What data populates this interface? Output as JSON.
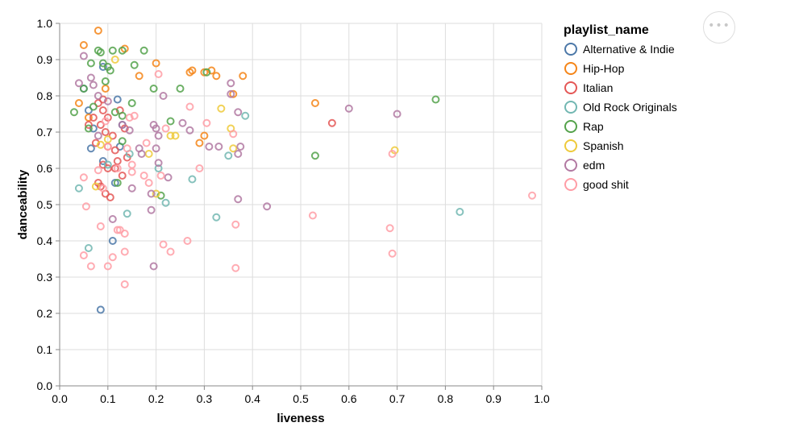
{
  "chart_data": {
    "type": "scatter",
    "xlabel": "liveness",
    "ylabel": "danceability",
    "xlim": [
      0,
      1
    ],
    "ylim": [
      0,
      1
    ],
    "x_ticks": [
      "0.0",
      "0.1",
      "0.2",
      "0.3",
      "0.4",
      "0.5",
      "0.6",
      "0.7",
      "0.8",
      "0.9",
      "1.0"
    ],
    "y_ticks": [
      "0.0",
      "0.1",
      "0.2",
      "0.3",
      "0.4",
      "0.5",
      "0.6",
      "0.7",
      "0.8",
      "0.9",
      "1.0"
    ],
    "grid": true,
    "legend_placement": "right",
    "legend_title": "playlist_name",
    "series": [
      {
        "name": "Alternative & Indie",
        "color": "#4c78a8",
        "points": [
          [
            0.085,
            0.21
          ],
          [
            0.11,
            0.4
          ],
          [
            0.065,
            0.655
          ],
          [
            0.07,
            0.71
          ],
          [
            0.09,
            0.62
          ],
          [
            0.12,
            0.79
          ],
          [
            0.115,
            0.56
          ],
          [
            0.125,
            0.66
          ],
          [
            0.05,
            0.82
          ],
          [
            0.09,
            0.88
          ],
          [
            0.13,
            0.72
          ],
          [
            0.06,
            0.76
          ]
        ]
      },
      {
        "name": "Hip-Hop",
        "color": "#f58518",
        "points": [
          [
            0.05,
            0.94
          ],
          [
            0.08,
            0.98
          ],
          [
            0.135,
            0.93
          ],
          [
            0.2,
            0.89
          ],
          [
            0.165,
            0.855
          ],
          [
            0.27,
            0.865
          ],
          [
            0.275,
            0.87
          ],
          [
            0.3,
            0.865
          ],
          [
            0.315,
            0.87
          ],
          [
            0.325,
            0.855
          ],
          [
            0.36,
            0.805
          ],
          [
            0.38,
            0.855
          ],
          [
            0.53,
            0.78
          ],
          [
            0.04,
            0.78
          ],
          [
            0.29,
            0.67
          ],
          [
            0.3,
            0.69
          ],
          [
            0.06,
            0.74
          ],
          [
            0.095,
            0.82
          ]
        ]
      },
      {
        "name": "Italian",
        "color": "#e45756",
        "points": [
          [
            0.08,
            0.78
          ],
          [
            0.09,
            0.76
          ],
          [
            0.1,
            0.74
          ],
          [
            0.085,
            0.72
          ],
          [
            0.095,
            0.7
          ],
          [
            0.11,
            0.69
          ],
          [
            0.075,
            0.67
          ],
          [
            0.1,
            0.66
          ],
          [
            0.115,
            0.65
          ],
          [
            0.12,
            0.62
          ],
          [
            0.09,
            0.61
          ],
          [
            0.1,
            0.6
          ],
          [
            0.13,
            0.58
          ],
          [
            0.085,
            0.55
          ],
          [
            0.095,
            0.53
          ],
          [
            0.105,
            0.52
          ],
          [
            0.115,
            0.6
          ],
          [
            0.07,
            0.74
          ],
          [
            0.06,
            0.72
          ],
          [
            0.125,
            0.76
          ],
          [
            0.135,
            0.71
          ],
          [
            0.565,
            0.725
          ],
          [
            0.09,
            0.79
          ],
          [
            0.08,
            0.56
          ],
          [
            0.14,
            0.63
          ]
        ]
      },
      {
        "name": "Old Rock Originals",
        "color": "#72b7b2",
        "points": [
          [
            0.04,
            0.545
          ],
          [
            0.06,
            0.38
          ],
          [
            0.14,
            0.475
          ],
          [
            0.205,
            0.6
          ],
          [
            0.22,
            0.505
          ],
          [
            0.275,
            0.57
          ],
          [
            0.325,
            0.465
          ],
          [
            0.35,
            0.635
          ],
          [
            0.385,
            0.745
          ],
          [
            0.83,
            0.48
          ],
          [
            0.145,
            0.64
          ],
          [
            0.1,
            0.61
          ]
        ]
      },
      {
        "name": "Rap",
        "color": "#54a24b",
        "points": [
          [
            0.03,
            0.755
          ],
          [
            0.065,
            0.89
          ],
          [
            0.08,
            0.925
          ],
          [
            0.085,
            0.92
          ],
          [
            0.09,
            0.89
          ],
          [
            0.1,
            0.88
          ],
          [
            0.11,
            0.925
          ],
          [
            0.13,
            0.925
          ],
          [
            0.175,
            0.925
          ],
          [
            0.155,
            0.885
          ],
          [
            0.105,
            0.87
          ],
          [
            0.195,
            0.82
          ],
          [
            0.25,
            0.82
          ],
          [
            0.15,
            0.78
          ],
          [
            0.305,
            0.865
          ],
          [
            0.23,
            0.73
          ],
          [
            0.13,
            0.745
          ],
          [
            0.115,
            0.755
          ],
          [
            0.13,
            0.675
          ],
          [
            0.06,
            0.71
          ],
          [
            0.12,
            0.56
          ],
          [
            0.21,
            0.525
          ],
          [
            0.53,
            0.635
          ],
          [
            0.78,
            0.79
          ],
          [
            0.095,
            0.84
          ],
          [
            0.07,
            0.77
          ],
          [
            0.05,
            0.82
          ]
        ]
      },
      {
        "name": "Spanish",
        "color": "#eeca3b",
        "points": [
          [
            0.115,
            0.9
          ],
          [
            0.23,
            0.69
          ],
          [
            0.24,
            0.69
          ],
          [
            0.335,
            0.765
          ],
          [
            0.355,
            0.71
          ],
          [
            0.36,
            0.655
          ],
          [
            0.695,
            0.65
          ],
          [
            0.085,
            0.665
          ],
          [
            0.075,
            0.55
          ],
          [
            0.2,
            0.53
          ],
          [
            0.1,
            0.68
          ],
          [
            0.185,
            0.64
          ]
        ]
      },
      {
        "name": "edm",
        "color": "#b279a2",
        "points": [
          [
            0.05,
            0.91
          ],
          [
            0.04,
            0.835
          ],
          [
            0.065,
            0.85
          ],
          [
            0.07,
            0.83
          ],
          [
            0.08,
            0.8
          ],
          [
            0.1,
            0.785
          ],
          [
            0.215,
            0.8
          ],
          [
            0.195,
            0.72
          ],
          [
            0.2,
            0.71
          ],
          [
            0.205,
            0.69
          ],
          [
            0.2,
            0.655
          ],
          [
            0.165,
            0.655
          ],
          [
            0.17,
            0.64
          ],
          [
            0.205,
            0.615
          ],
          [
            0.225,
            0.575
          ],
          [
            0.19,
            0.53
          ],
          [
            0.19,
            0.485
          ],
          [
            0.195,
            0.33
          ],
          [
            0.255,
            0.725
          ],
          [
            0.27,
            0.705
          ],
          [
            0.31,
            0.66
          ],
          [
            0.33,
            0.66
          ],
          [
            0.355,
            0.835
          ],
          [
            0.355,
            0.805
          ],
          [
            0.37,
            0.755
          ],
          [
            0.375,
            0.66
          ],
          [
            0.37,
            0.64
          ],
          [
            0.37,
            0.515
          ],
          [
            0.43,
            0.495
          ],
          [
            0.6,
            0.765
          ],
          [
            0.7,
            0.75
          ],
          [
            0.145,
            0.705
          ],
          [
            0.13,
            0.72
          ],
          [
            0.11,
            0.46
          ],
          [
            0.08,
            0.69
          ],
          [
            0.15,
            0.545
          ]
        ]
      },
      {
        "name": "good shit",
        "color": "#ff9da6",
        "points": [
          [
            0.05,
            0.575
          ],
          [
            0.055,
            0.495
          ],
          [
            0.05,
            0.36
          ],
          [
            0.065,
            0.33
          ],
          [
            0.085,
            0.44
          ],
          [
            0.1,
            0.33
          ],
          [
            0.11,
            0.355
          ],
          [
            0.12,
            0.43
          ],
          [
            0.125,
            0.43
          ],
          [
            0.135,
            0.42
          ],
          [
            0.135,
            0.37
          ],
          [
            0.135,
            0.28
          ],
          [
            0.15,
            0.59
          ],
          [
            0.15,
            0.61
          ],
          [
            0.175,
            0.58
          ],
          [
            0.18,
            0.67
          ],
          [
            0.21,
            0.58
          ],
          [
            0.215,
            0.39
          ],
          [
            0.23,
            0.37
          ],
          [
            0.265,
            0.4
          ],
          [
            0.27,
            0.77
          ],
          [
            0.29,
            0.6
          ],
          [
            0.305,
            0.725
          ],
          [
            0.365,
            0.445
          ],
          [
            0.365,
            0.325
          ],
          [
            0.36,
            0.695
          ],
          [
            0.525,
            0.47
          ],
          [
            0.685,
            0.435
          ],
          [
            0.69,
            0.64
          ],
          [
            0.69,
            0.365
          ],
          [
            0.98,
            0.525
          ],
          [
            0.08,
            0.595
          ],
          [
            0.145,
            0.74
          ],
          [
            0.155,
            0.745
          ],
          [
            0.12,
            0.6
          ],
          [
            0.095,
            0.73
          ],
          [
            0.22,
            0.71
          ],
          [
            0.1,
            0.66
          ],
          [
            0.09,
            0.545
          ],
          [
            0.205,
            0.86
          ],
          [
            0.185,
            0.56
          ],
          [
            0.14,
            0.655
          ]
        ]
      }
    ]
  },
  "menu": {
    "label": "•••"
  }
}
